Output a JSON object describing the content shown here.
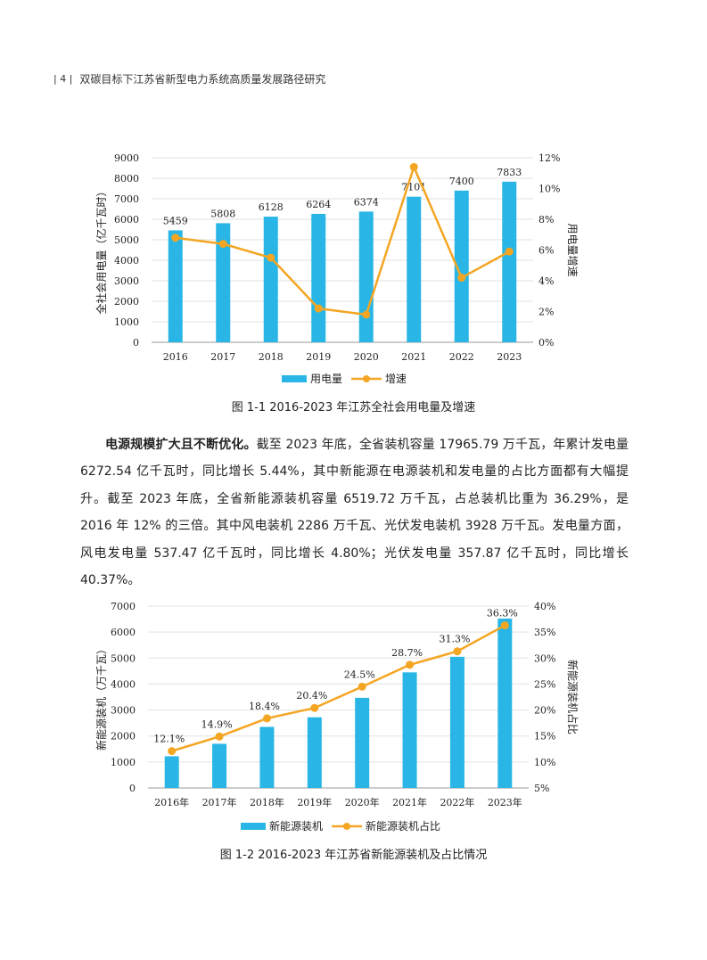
{
  "header": {
    "page_number": "| 4 |",
    "title": "双碳目标下江苏省新型电力系统高质量发展路径研究"
  },
  "figure1": {
    "caption": "图 1-1  2016-2023 年江苏全社会用电量及增速"
  },
  "figure2": {
    "caption": "图 1-2  2016-2023 年江苏省新能源装机及占比情况"
  },
  "paragraph": {
    "lead": "电源规模扩大且不断优化。",
    "text": "截至 2023 年底，全省装机容量 17965.79 万千瓦，年累计发电量 6272.54 亿千瓦时，同比增长 5.44%，其中新能源在电源装机和发电量的占比方面都有大幅提升。截至 2023 年底，全省新能源装机容量 6519.72 万千瓦，占总装机比重为 36.29%，是 2016 年 12% 的三倍。其中风电装机 2286 万千瓦、光伏发电装机 3928 万千瓦。发电量方面，风电发电量 537.47 亿千瓦时，同比增长 4.80%；光伏发电量 357.87 亿千瓦时，同比增长 40.37%。"
  },
  "chart_data": [
    {
      "type": "bar",
      "categories": [
        "2016",
        "2017",
        "2018",
        "2019",
        "2020",
        "2021",
        "2022",
        "2023"
      ],
      "series": [
        {
          "name": "用电量",
          "type": "bar",
          "axis": "left",
          "values": [
            5459,
            5808,
            6128,
            6264,
            6374,
            7101,
            7400,
            7833
          ],
          "labels": [
            "5459",
            "5808",
            "6128",
            "6264",
            "6374",
            "7101",
            "7400",
            "7833"
          ],
          "color": "#29b6e6"
        },
        {
          "name": "增速",
          "type": "line",
          "axis": "right",
          "values": [
            6.8,
            6.4,
            5.5,
            2.2,
            1.8,
            11.4,
            4.2,
            5.9
          ],
          "color": "#f4a623"
        }
      ],
      "ylabel": "全社会用电量（亿千瓦时）",
      "ylabel_right": "用电量增速",
      "ylim": [
        0,
        9000
      ],
      "yticks": [
        "0",
        "1000",
        "2000",
        "3000",
        "4000",
        "5000",
        "6000",
        "7000",
        "8000",
        "9000"
      ],
      "ylim_right": [
        0,
        12
      ],
      "yticks_right": [
        "0%",
        "2%",
        "4%",
        "6%",
        "8%",
        "10%",
        "12%"
      ],
      "grid": true,
      "legend": "bottom"
    },
    {
      "type": "bar",
      "categories": [
        "2016年",
        "2017年",
        "2018年",
        "2019年",
        "2020年",
        "2021年",
        "2022年",
        "2023年"
      ],
      "series": [
        {
          "name": "新能源装机",
          "type": "bar",
          "axis": "left",
          "values": [
            1220,
            1700,
            2350,
            2720,
            3470,
            4450,
            5050,
            6520
          ],
          "color": "#29b6e6"
        },
        {
          "name": "新能源装机占比",
          "type": "line",
          "axis": "right",
          "values": [
            12.1,
            14.9,
            18.4,
            20.4,
            24.5,
            28.7,
            31.3,
            36.3
          ],
          "labels": [
            "12.1%",
            "14.9%",
            "18.4%",
            "20.4%",
            "24.5%",
            "28.7%",
            "31.3%",
            "36.3%"
          ],
          "color": "#f4a623"
        }
      ],
      "ylabel": "新能源装机（万千瓦）",
      "ylabel_right": "新能源装机占比",
      "ylim": [
        0,
        7000
      ],
      "yticks": [
        "0",
        "1000",
        "2000",
        "3000",
        "4000",
        "5000",
        "6000",
        "7000"
      ],
      "ylim_right": [
        5,
        40
      ],
      "yticks_right": [
        "5%",
        "10%",
        "15%",
        "20%",
        "25%",
        "30%",
        "35%",
        "40%"
      ],
      "grid": true,
      "legend": "bottom"
    }
  ]
}
